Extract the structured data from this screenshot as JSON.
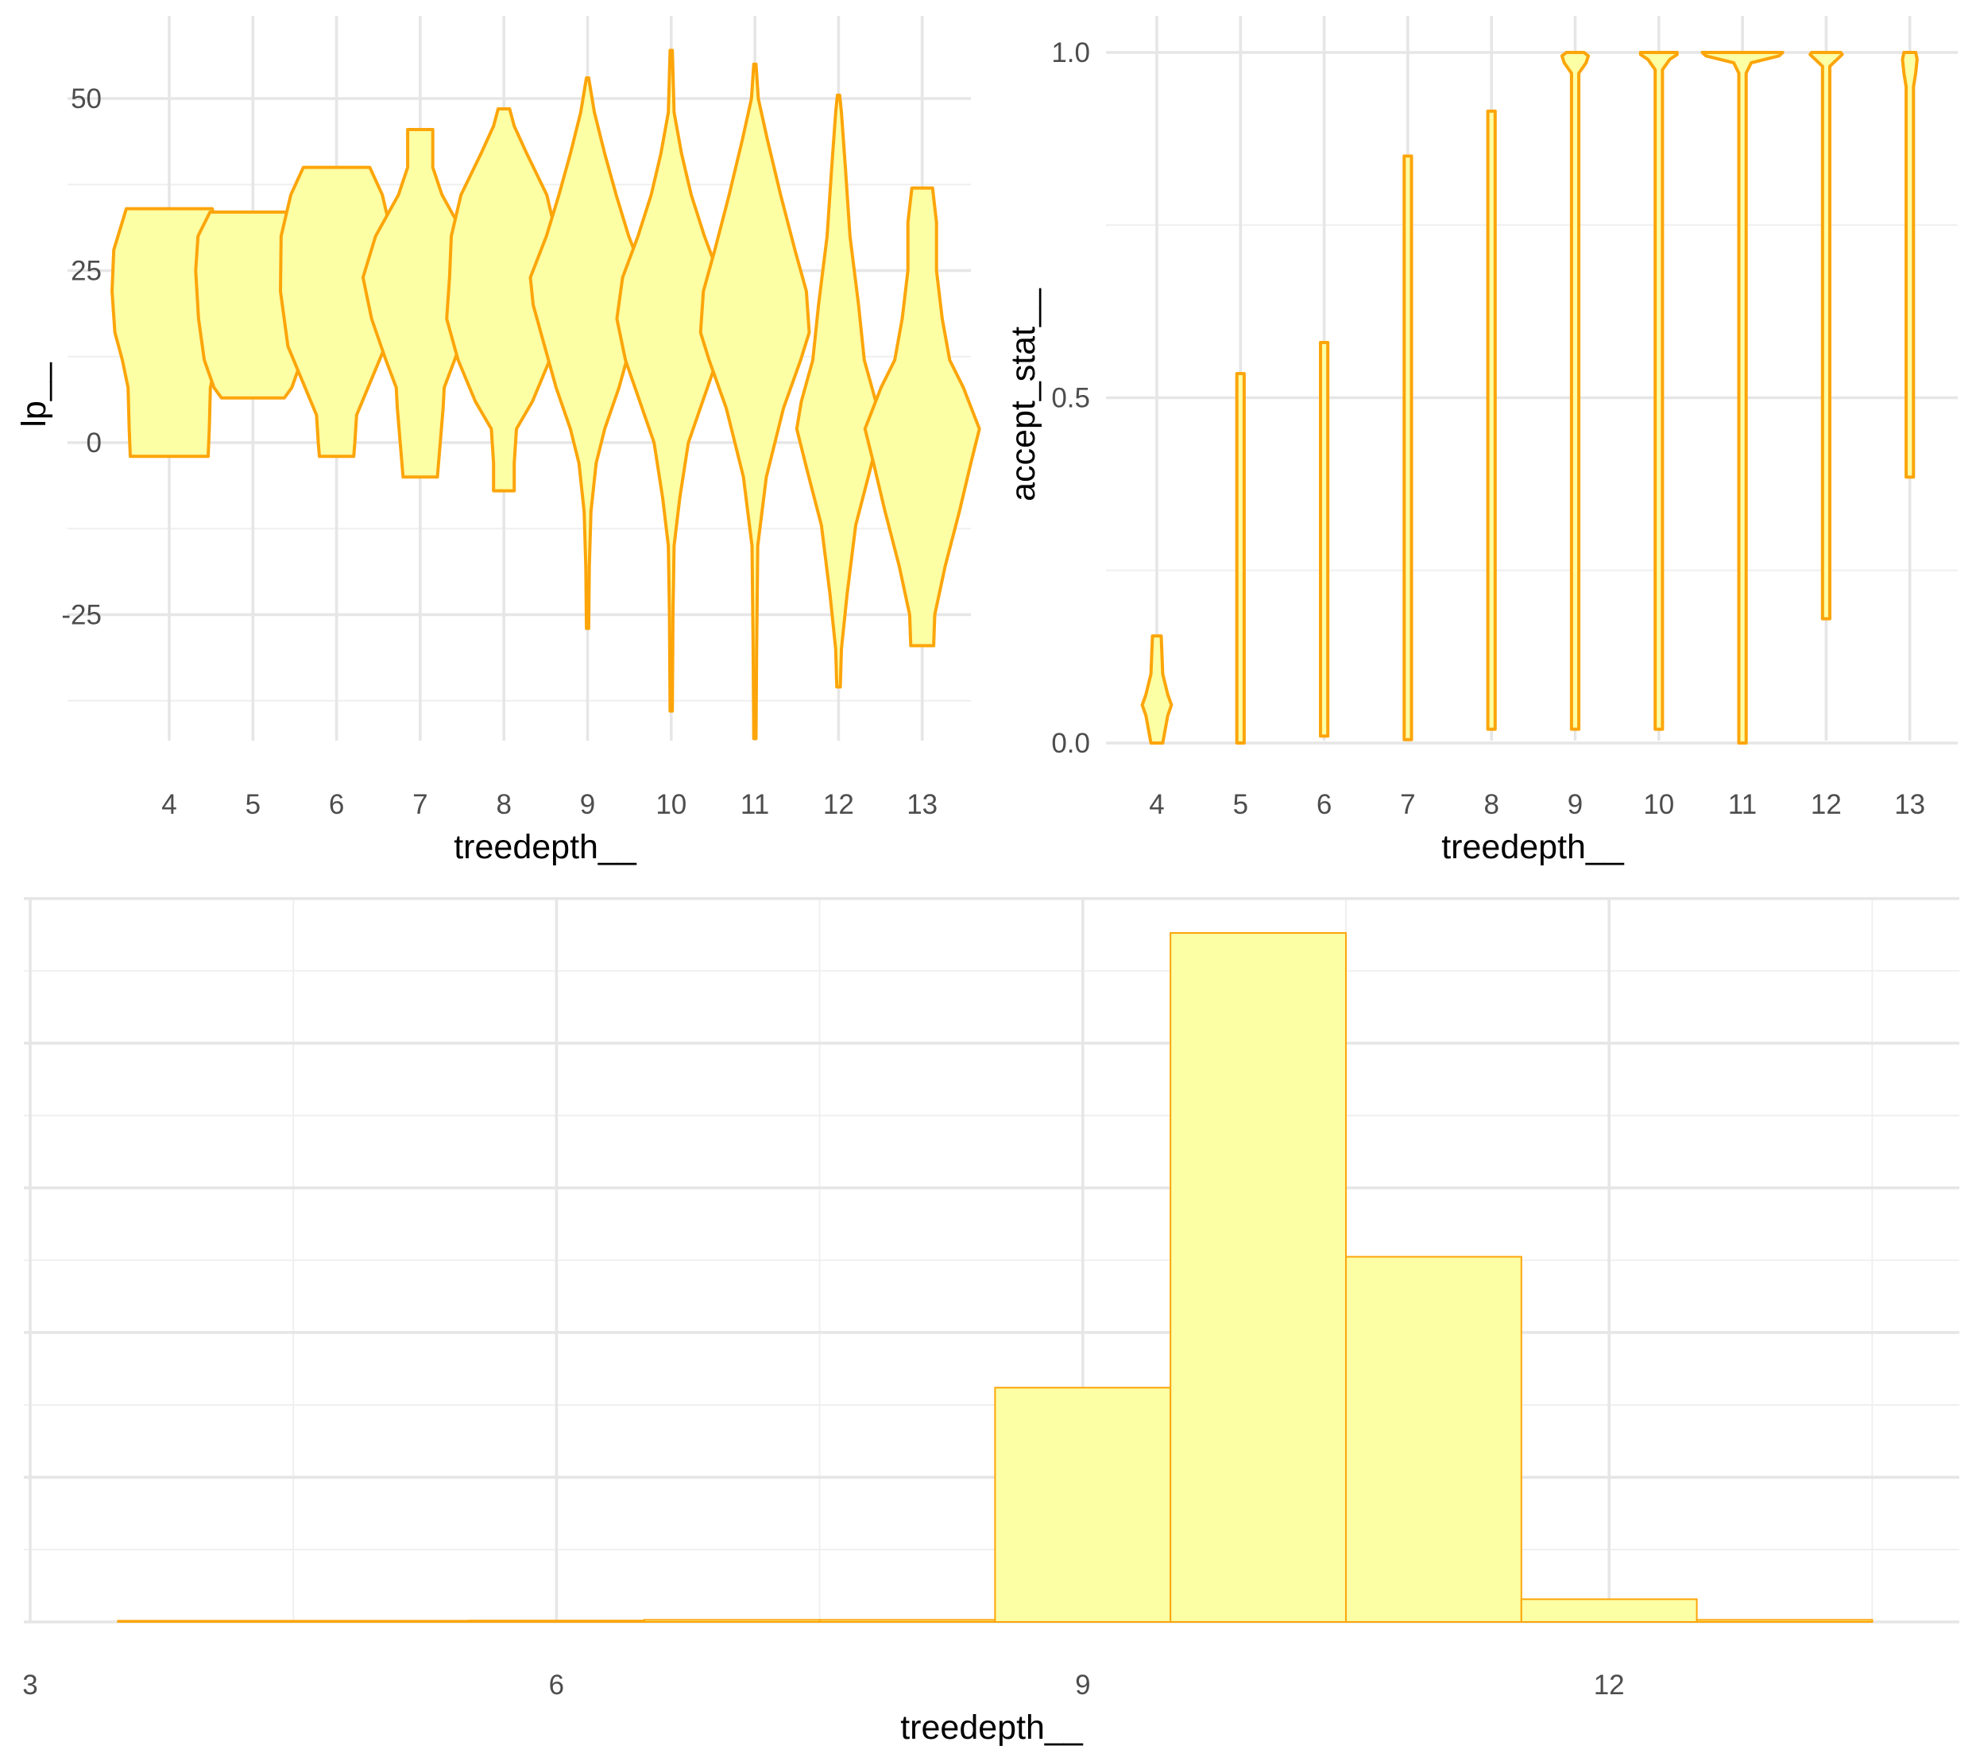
{
  "chart_data": [
    {
      "type": "violin",
      "xlabel": "treedepth__",
      "ylabel": "lp__",
      "categories": [
        "4",
        "5",
        "6",
        "7",
        "8",
        "9",
        "10",
        "11",
        "12",
        "13"
      ],
      "y_ticks": [
        -25,
        0,
        25,
        50
      ],
      "y_tick_labels": [
        "-25",
        "0",
        "25",
        "50"
      ],
      "ylim": [
        -43,
        60
      ],
      "grid": true,
      "fill": "#FCFFA4",
      "stroke": "#FCA50A",
      "violins": [
        {
          "x": "4",
          "min": -2,
          "max": 34,
          "profile": [
            [
              -2,
              0.68
            ],
            [
              2,
              0.7
            ],
            [
              8,
              0.72
            ],
            [
              12,
              0.82
            ],
            [
              16,
              0.95
            ],
            [
              22,
              1.0
            ],
            [
              28,
              0.97
            ],
            [
              34,
              0.75
            ]
          ]
        },
        {
          "x": "5",
          "min": 6.5,
          "max": 33.5,
          "profile": [
            [
              6.5,
              0.55
            ],
            [
              8,
              0.68
            ],
            [
              12,
              0.85
            ],
            [
              18,
              0.95
            ],
            [
              25,
              1.0
            ],
            [
              30,
              0.96
            ],
            [
              33.5,
              0.75
            ]
          ]
        },
        {
          "x": "6",
          "min": -2,
          "max": 40,
          "profile": [
            [
              -2,
              0.3
            ],
            [
              0,
              0.32
            ],
            [
              4,
              0.35
            ],
            [
              8,
              0.55
            ],
            [
              14,
              0.85
            ],
            [
              22,
              0.98
            ],
            [
              30,
              0.97
            ],
            [
              36,
              0.8
            ],
            [
              40,
              0.58
            ]
          ]
        },
        {
          "x": "7",
          "min": -5,
          "max": 45.5,
          "profile": [
            [
              -5,
              0.3
            ],
            [
              0,
              0.35
            ],
            [
              5,
              0.4
            ],
            [
              8,
              0.42
            ],
            [
              12,
              0.6
            ],
            [
              18,
              0.85
            ],
            [
              24,
              1.0
            ],
            [
              30,
              0.78
            ],
            [
              36,
              0.38
            ],
            [
              40,
              0.22
            ],
            [
              45.5,
              0.22
            ]
          ]
        },
        {
          "x": "8",
          "min": -7,
          "max": 48.5,
          "profile": [
            [
              -7,
              0.18
            ],
            [
              -3,
              0.18
            ],
            [
              2,
              0.22
            ],
            [
              6,
              0.5
            ],
            [
              12,
              0.8
            ],
            [
              18,
              1.0
            ],
            [
              24,
              0.95
            ],
            [
              30,
              0.92
            ],
            [
              36,
              0.75
            ],
            [
              42,
              0.4
            ],
            [
              46,
              0.18
            ],
            [
              48.5,
              0.1
            ]
          ]
        },
        {
          "x": "9",
          "min": -27,
          "max": 53,
          "profile": [
            [
              -27,
              0.02
            ],
            [
              -18,
              0.03
            ],
            [
              -10,
              0.06
            ],
            [
              -3,
              0.15
            ],
            [
              2,
              0.3
            ],
            [
              8,
              0.55
            ],
            [
              14,
              0.75
            ],
            [
              20,
              0.95
            ],
            [
              24,
              1.0
            ],
            [
              30,
              0.72
            ],
            [
              36,
              0.5
            ],
            [
              42,
              0.3
            ],
            [
              48,
              0.12
            ],
            [
              53,
              0.02
            ]
          ]
        },
        {
          "x": "10",
          "min": -39,
          "max": 57,
          "profile": [
            [
              -39,
              0.02
            ],
            [
              -25,
              0.03
            ],
            [
              -15,
              0.05
            ],
            [
              -8,
              0.15
            ],
            [
              0,
              0.3
            ],
            [
              6,
              0.55
            ],
            [
              12,
              0.8
            ],
            [
              18,
              0.95
            ],
            [
              24,
              0.85
            ],
            [
              30,
              0.58
            ],
            [
              36,
              0.35
            ],
            [
              42,
              0.18
            ],
            [
              48,
              0.05
            ],
            [
              57,
              0.02
            ]
          ]
        },
        {
          "x": "11",
          "min": -43,
          "max": 55,
          "profile": [
            [
              -43,
              0.02
            ],
            [
              -30,
              0.03
            ],
            [
              -15,
              0.05
            ],
            [
              -5,
              0.2
            ],
            [
              5,
              0.5
            ],
            [
              12,
              0.8
            ],
            [
              16,
              0.95
            ],
            [
              22,
              0.9
            ],
            [
              28,
              0.7
            ],
            [
              36,
              0.45
            ],
            [
              44,
              0.22
            ],
            [
              50,
              0.06
            ],
            [
              55,
              0.02
            ]
          ]
        },
        {
          "x": "12",
          "min": -35.5,
          "max": 50.5,
          "profile": [
            [
              -35.5,
              0.03
            ],
            [
              -30,
              0.05
            ],
            [
              -22,
              0.15
            ],
            [
              -12,
              0.3
            ],
            [
              -4,
              0.55
            ],
            [
              2,
              0.73
            ],
            [
              6,
              0.65
            ],
            [
              12,
              0.45
            ],
            [
              20,
              0.35
            ],
            [
              30,
              0.2
            ],
            [
              40,
              0.12
            ],
            [
              48,
              0.05
            ],
            [
              50.5,
              0.02
            ]
          ]
        },
        {
          "x": "13",
          "min": -29.5,
          "max": 37,
          "profile": [
            [
              -29.5,
              0.2
            ],
            [
              -25,
              0.22
            ],
            [
              -18,
              0.4
            ],
            [
              -10,
              0.65
            ],
            [
              -3,
              0.85
            ],
            [
              2,
              1.0
            ],
            [
              8,
              0.72
            ],
            [
              12,
              0.48
            ],
            [
              18,
              0.35
            ],
            [
              25,
              0.25
            ],
            [
              32,
              0.25
            ],
            [
              37,
              0.18
            ]
          ]
        }
      ]
    },
    {
      "type": "violin",
      "xlabel": "treedepth__",
      "ylabel": "accept_stat__",
      "categories": [
        "4",
        "5",
        "6",
        "7",
        "8",
        "9",
        "10",
        "11",
        "12",
        "13"
      ],
      "y_ticks": [
        0.0,
        0.5,
        1.0
      ],
      "y_tick_labels": [
        "0.0",
        "0.5",
        "1.0"
      ],
      "ylim": [
        -0.05,
        1.05
      ],
      "grid": true,
      "fill": "#FCFFA4",
      "stroke": "#FCA50A",
      "violins": [
        {
          "x": "4",
          "min": 0.0,
          "max": 0.155,
          "profile": [
            [
              0.0,
              0.08
            ],
            [
              0.04,
              0.15
            ],
            [
              0.055,
              0.2
            ],
            [
              0.07,
              0.15
            ],
            [
              0.1,
              0.08
            ],
            [
              0.155,
              0.06
            ]
          ]
        },
        {
          "x": "5",
          "min": 0.0,
          "max": 0.535,
          "profile": [
            [
              0.0,
              0.05
            ],
            [
              0.535,
              0.05
            ]
          ]
        },
        {
          "x": "6",
          "min": 0.01,
          "max": 0.58,
          "profile": [
            [
              0.01,
              0.05
            ],
            [
              0.58,
              0.05
            ]
          ]
        },
        {
          "x": "7",
          "min": 0.005,
          "max": 0.85,
          "profile": [
            [
              0.005,
              0.05
            ],
            [
              0.85,
              0.05
            ]
          ]
        },
        {
          "x": "8",
          "min": 0.02,
          "max": 0.915,
          "profile": [
            [
              0.02,
              0.05
            ],
            [
              0.915,
              0.05
            ]
          ]
        },
        {
          "x": "9",
          "min": 0.02,
          "max": 1.0,
          "profile": [
            [
              0.02,
              0.05
            ],
            [
              0.97,
              0.05
            ],
            [
              0.985,
              0.15
            ],
            [
              0.995,
              0.18
            ],
            [
              1.0,
              0.12
            ]
          ]
        },
        {
          "x": "10",
          "min": 0.02,
          "max": 1.0,
          "profile": [
            [
              0.02,
              0.05
            ],
            [
              0.975,
              0.05
            ],
            [
              0.99,
              0.15
            ],
            [
              0.997,
              0.25
            ],
            [
              1.0,
              0.25
            ]
          ]
        },
        {
          "x": "11",
          "min": 0.0,
          "max": 1.0,
          "profile": [
            [
              0.0,
              0.05
            ],
            [
              0.97,
              0.05
            ],
            [
              0.985,
              0.12
            ],
            [
              0.995,
              0.5
            ],
            [
              1.0,
              0.55
            ]
          ]
        },
        {
          "x": "12",
          "min": 0.18,
          "max": 1.0,
          "profile": [
            [
              0.18,
              0.05
            ],
            [
              0.98,
              0.05
            ],
            [
              0.99,
              0.15
            ],
            [
              0.997,
              0.22
            ],
            [
              1.0,
              0.2
            ]
          ]
        },
        {
          "x": "13",
          "min": 0.385,
          "max": 1.0,
          "profile": [
            [
              0.385,
              0.05
            ],
            [
              0.95,
              0.05
            ],
            [
              0.97,
              0.08
            ],
            [
              0.99,
              0.1
            ],
            [
              1.0,
              0.08
            ]
          ]
        }
      ]
    },
    {
      "type": "histogram",
      "xlabel": "treedepth__",
      "x_ticks": [
        3,
        6,
        9,
        12
      ],
      "x_tick_labels": [
        "3",
        "6",
        "9",
        "12"
      ],
      "xlim": [
        3,
        14
      ],
      "ylim": [
        0,
        10.5
      ],
      "grid": true,
      "fill": "#FCFFA4",
      "stroke": "#FCA50A",
      "bins": [
        {
          "x0": 3.5,
          "x1": 4.5,
          "count": 0.01
        },
        {
          "x0": 4.5,
          "x1": 5.5,
          "count": 0.015
        },
        {
          "x0": 5.5,
          "x1": 6.5,
          "count": 0.02
        },
        {
          "x0": 6.5,
          "x1": 7.5,
          "count": 0.03
        },
        {
          "x0": 7.5,
          "x1": 8.5,
          "count": 0.03
        },
        {
          "x0": 8.5,
          "x1": 9.5,
          "count": 3.4
        },
        {
          "x0": 9.5,
          "x1": 10.5,
          "count": 10.0
        },
        {
          "x0": 10.5,
          "x1": 11.5,
          "count": 5.3
        },
        {
          "x0": 11.5,
          "x1": 12.5,
          "count": 0.33
        },
        {
          "x0": 12.5,
          "x1": 13.5,
          "count": 0.03
        }
      ]
    }
  ]
}
